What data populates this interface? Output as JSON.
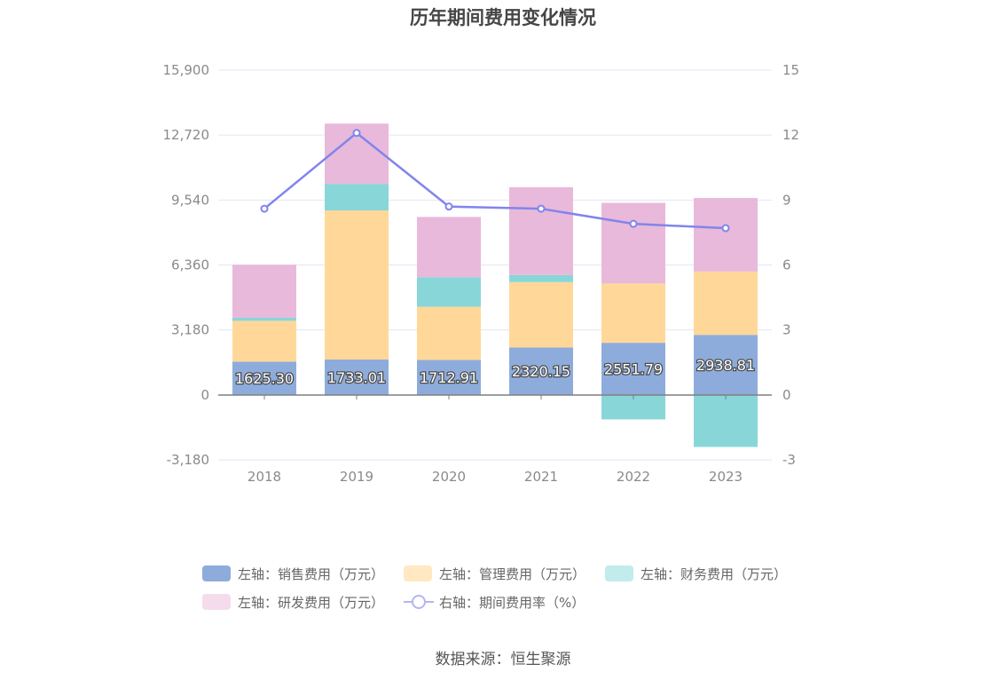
{
  "title": "历年期间费用变化情况",
  "source": "数据来源：恒生聚源",
  "chart_data": {
    "type": "bar",
    "stacked": true,
    "categories": [
      "2018",
      "2019",
      "2020",
      "2021",
      "2022",
      "2023"
    ],
    "series": [
      {
        "name": "左轴：销售费用（万元）",
        "axis": "left",
        "color": "#8eacdb",
        "values": [
          1625.3,
          1733.01,
          1712.91,
          2320.15,
          2551.79,
          2938.81
        ]
      },
      {
        "name": "左轴：管理费用（万元）",
        "axis": "left",
        "color": "#ffd899",
        "values": [
          2000,
          7300,
          2600,
          3200,
          2900,
          3100
        ]
      },
      {
        "name": "左轴：财务费用（万元）",
        "axis": "left",
        "color": "#89d6d9",
        "values": [
          150,
          1300,
          1450,
          350,
          -1200,
          -2550
        ]
      },
      {
        "name": "左轴：研发费用（万元）",
        "axis": "left",
        "color": "#e8b9da",
        "values": [
          2600,
          2950,
          2950,
          4300,
          3950,
          3600
        ]
      },
      {
        "name": "右轴：期间费用率（%）",
        "axis": "right",
        "type": "line",
        "color": "#8185ec",
        "values": [
          8.6,
          12.1,
          8.7,
          8.6,
          7.9,
          7.7
        ]
      }
    ],
    "data_labels": [
      "1625.30",
      "1733.01",
      "1712.91",
      "2320.15",
      "2551.79",
      "2938.81"
    ],
    "left_axis": {
      "ticks": [
        "15,900",
        "12,720",
        "9,540",
        "6,360",
        "3,180",
        "0",
        "-3,180"
      ],
      "ylim": [
        -3180,
        15900
      ]
    },
    "right_axis": {
      "ticks": [
        "15",
        "12",
        "9",
        "6",
        "3",
        "0",
        "-3"
      ],
      "ylim": [
        -3,
        15
      ]
    },
    "grid": true,
    "legend_position": "bottom"
  }
}
